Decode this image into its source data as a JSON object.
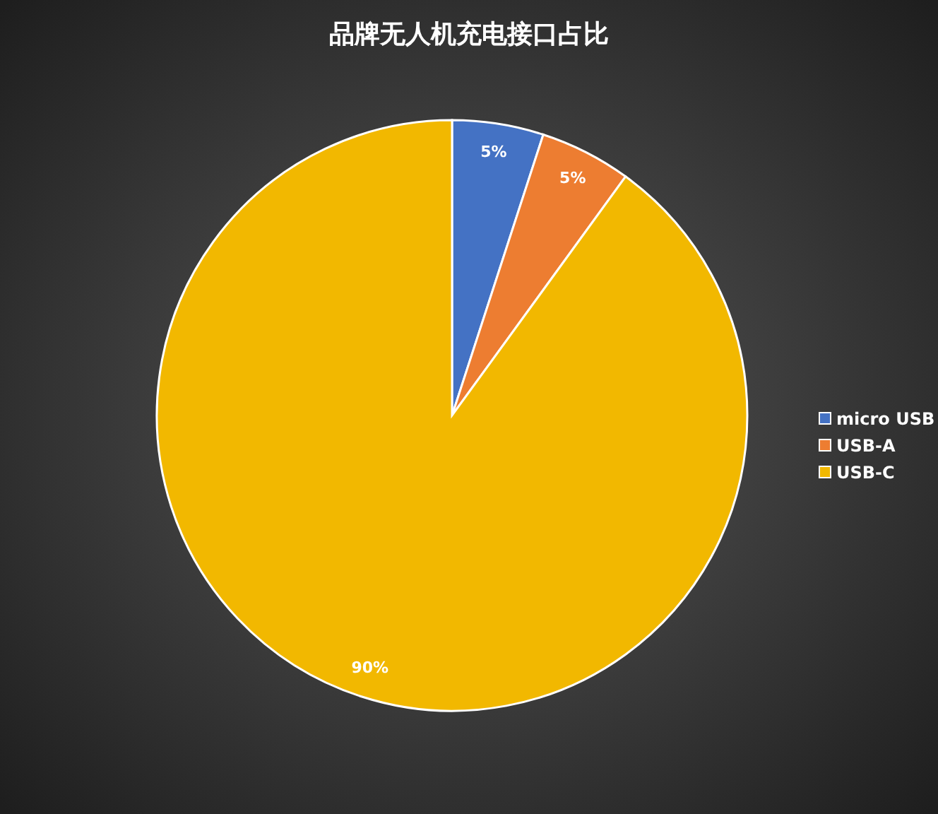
{
  "chart_data": {
    "type": "pie",
    "title": "品牌无人机充电接口占比",
    "categories": [
      "micro USB",
      "USB-A",
      "USB-C"
    ],
    "values": [
      5,
      5,
      90
    ],
    "colors": [
      "#4472c4",
      "#ed7d31",
      "#f2b800"
    ],
    "value_labels": [
      "5%",
      "5%",
      "90%"
    ],
    "legend": "right"
  }
}
